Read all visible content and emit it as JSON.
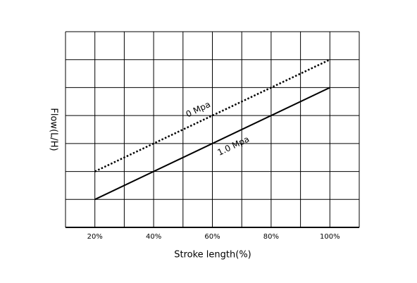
{
  "chart_data": {
    "type": "line",
    "x_label": "Stroke length(%)",
    "y_label": "Flow(L/H)",
    "xlim": [
      10,
      110
    ],
    "ylim": [
      0,
      7
    ],
    "xticks": [
      {
        "value": 20,
        "label": "20%"
      },
      {
        "value": 40,
        "label": "40%"
      },
      {
        "value": 60,
        "label": "60%"
      },
      {
        "value": 80,
        "label": "80%"
      },
      {
        "value": 100,
        "label": "100%"
      }
    ],
    "xgrid": [
      10,
      20,
      30,
      40,
      50,
      60,
      70,
      80,
      90,
      100,
      110
    ],
    "ygrid": [
      0,
      1,
      2,
      3,
      4,
      5,
      6,
      7
    ],
    "grid": true,
    "x": [
      20,
      100
    ],
    "series": [
      {
        "name": "0 Mpa",
        "color": "#000000",
        "style": "dotted",
        "values": [
          2,
          6
        ]
      },
      {
        "name": "1.0 Mpa",
        "color": "#000000",
        "style": "solid",
        "values": [
          1,
          5
        ]
      }
    ]
  }
}
